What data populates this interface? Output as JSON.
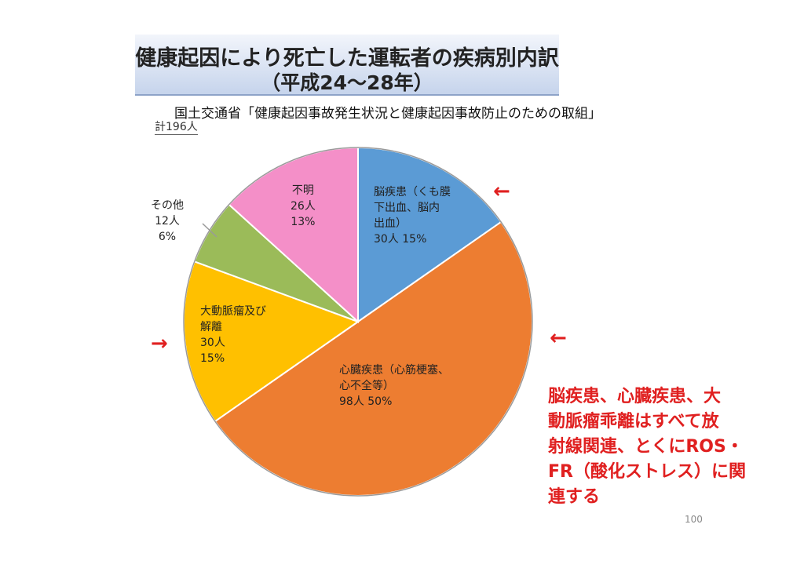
{
  "title": {
    "line1": "健康起因により死亡した運転者の疾病別内訳",
    "line2": "（平成24～28年）"
  },
  "source": "国土交通省「健康起因事故発生状況と健康起因事故防止のための取組」",
  "total": "計196人",
  "chart_data": {
    "type": "pie",
    "start_angle_deg": 0,
    "direction": "clockwise",
    "slices": [
      {
        "name": "脳疾患（くも膜下出血、脳内出血）",
        "value": 30,
        "percent": 15,
        "color": "#5b9bd5",
        "label_lines": [
          "脳疾患（くも膜",
          "下出血、脳内",
          "出血）",
          "30人 15%"
        ]
      },
      {
        "name": "心臓疾患（心筋梗塞、心不全等）",
        "value": 98,
        "percent": 50,
        "color": "#ed7d31",
        "label_lines": [
          "心臓疾患（心筋梗塞、",
          "心不全等）",
          "98人 50%"
        ]
      },
      {
        "name": "大動脈瘤及び解離",
        "value": 30,
        "percent": 15,
        "color": "#ffc000",
        "label_lines": [
          "大動脈瘤及び",
          "解離",
          "30人",
          "15%"
        ]
      },
      {
        "name": "その他",
        "value": 12,
        "percent": 6,
        "color": "#9bbb59",
        "label_lines": [
          "その他",
          "12人",
          "6%"
        ]
      },
      {
        "name": "不明",
        "value": 26,
        "percent": 13,
        "color": "#f48fc8",
        "label_lines": [
          "不明",
          "26人",
          "13%"
        ]
      }
    ]
  },
  "arrows": {
    "arrow1": "←",
    "arrow2": "←",
    "arrow3": "→"
  },
  "note_lines": [
    "脳疾患、心臓疾患、大",
    "動脈瘤乖離はすべて放",
    "射線関連、とくにROS・",
    "FR（酸化ストレス）に関",
    "連する"
  ],
  "page_number": "100"
}
